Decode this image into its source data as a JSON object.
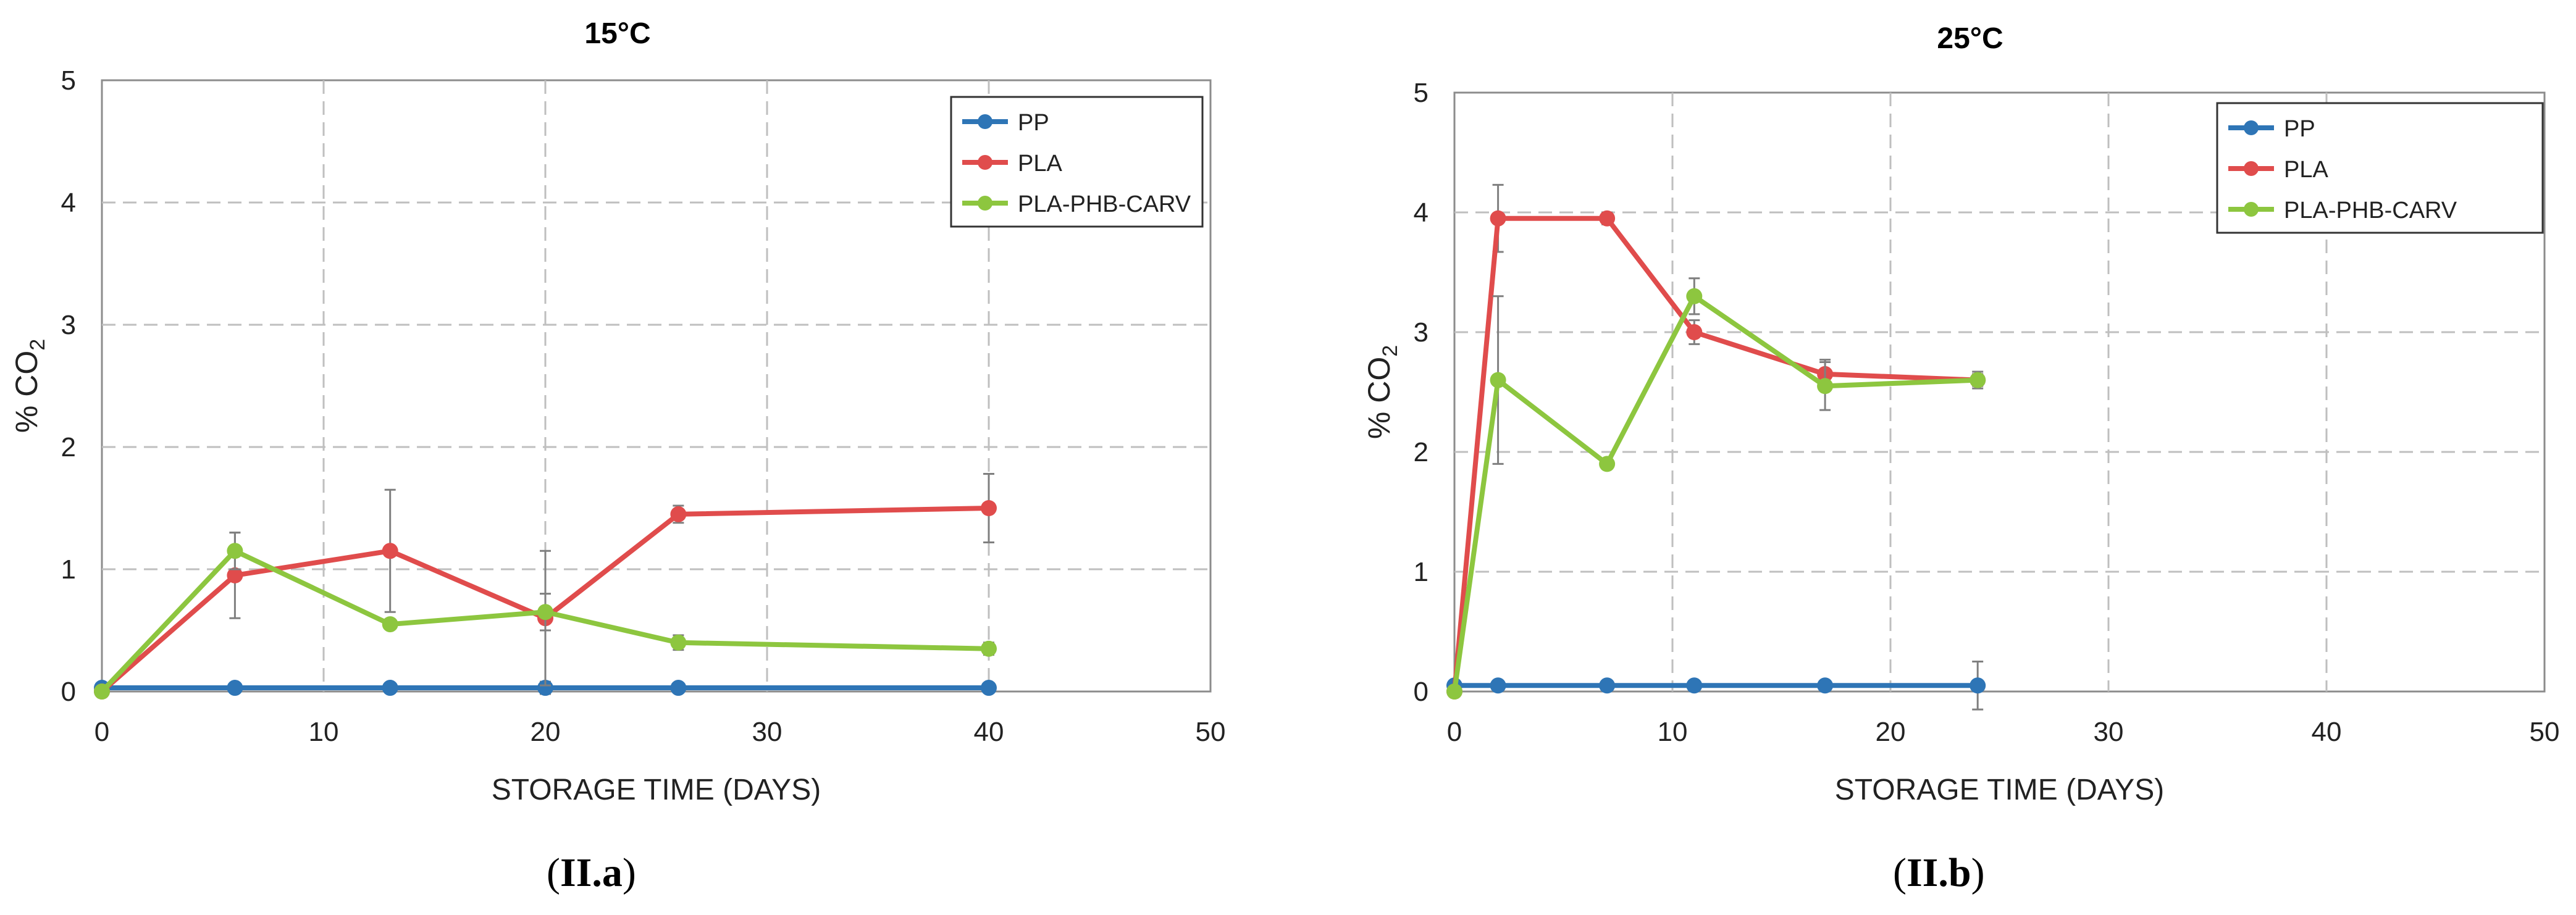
{
  "chart_data": [
    {
      "type": "line",
      "title": "15°C",
      "xlabel": "STORAGE TIME (DAYS)",
      "ylabel_prefix": "% CO",
      "ylabel_sub": "2",
      "xlim": [
        0,
        50
      ],
      "ylim": [
        0,
        5
      ],
      "xticks": [
        0,
        10,
        20,
        30,
        40,
        50
      ],
      "yticks": [
        0,
        1,
        2,
        3,
        4,
        5
      ],
      "grid": true,
      "legend_position": "top-right",
      "series": [
        {
          "name": "PP",
          "color": "#2E75B6",
          "x": [
            0,
            6,
            13,
            20,
            26,
            40
          ],
          "y": [
            0.03,
            0.03,
            0.03,
            0.03,
            0.03,
            0.03
          ],
          "err": [
            0,
            0,
            0,
            0.05,
            0,
            0
          ]
        },
        {
          "name": "PLA",
          "color": "#E04C4C",
          "x": [
            0,
            6,
            13,
            20,
            26,
            40
          ],
          "y": [
            0.0,
            0.95,
            1.15,
            0.6,
            1.45,
            1.5
          ],
          "err": [
            0,
            0.35,
            0.5,
            0.55,
            0.07,
            0.28
          ]
        },
        {
          "name": "PLA-PHB-CARV",
          "color": "#8DC63F",
          "x": [
            0,
            6,
            13,
            20,
            26,
            40
          ],
          "y": [
            0.0,
            1.15,
            0.55,
            0.65,
            0.4,
            0.35
          ],
          "err": [
            0,
            0.15,
            0,
            0.15,
            0.06,
            0.05
          ]
        }
      ]
    },
    {
      "type": "line",
      "title": "25°C",
      "xlabel": "STORAGE TIME (DAYS)",
      "ylabel_prefix": "% CO",
      "ylabel_sub": "2",
      "xlim": [
        0,
        50
      ],
      "ylim": [
        0,
        5
      ],
      "xticks": [
        0,
        10,
        20,
        30,
        40,
        50
      ],
      "yticks": [
        0,
        1,
        2,
        3,
        4,
        5
      ],
      "grid": true,
      "legend_position": "top-right",
      "series": [
        {
          "name": "PP",
          "color": "#2E75B6",
          "x": [
            0,
            2,
            7,
            11,
            17,
            24
          ],
          "y": [
            0.05,
            0.05,
            0.05,
            0.05,
            0.05,
            0.05
          ],
          "err": [
            0,
            0.03,
            0,
            0,
            0,
            0.2
          ]
        },
        {
          "name": "PLA",
          "color": "#E04C4C",
          "x": [
            0,
            2,
            7,
            11,
            17,
            24
          ],
          "y": [
            0.0,
            3.95,
            3.95,
            3.0,
            2.65,
            2.6
          ],
          "err": [
            0,
            0.28,
            0.05,
            0.1,
            0.12,
            0.05
          ]
        },
        {
          "name": "PLA-PHB-CARV",
          "color": "#8DC63F",
          "x": [
            0,
            2,
            7,
            11,
            17,
            24
          ],
          "y": [
            0.0,
            2.6,
            1.9,
            3.3,
            2.55,
            2.6
          ],
          "err": [
            0,
            0.7,
            0,
            0.15,
            0.2,
            0.07
          ]
        }
      ]
    }
  ],
  "captions": [
    {
      "label": "II.a",
      "open": "(",
      "close": ")"
    },
    {
      "label": "II.b",
      "open": "(",
      "close": ")"
    }
  ]
}
